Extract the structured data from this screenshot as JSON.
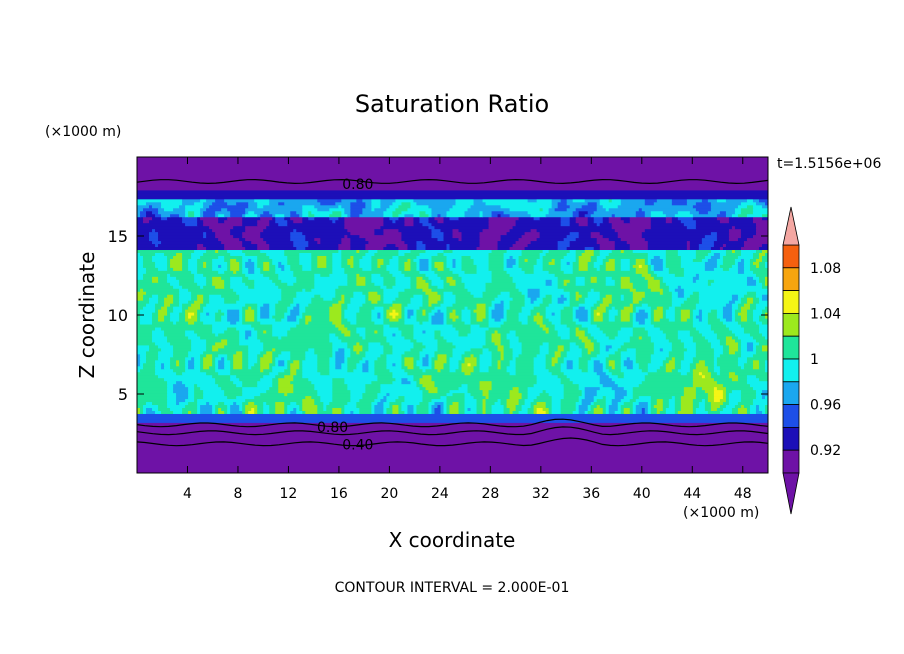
{
  "chart_data": {
    "type": "contour",
    "title": "Saturation Ratio",
    "xlabel": "X coordinate",
    "ylabel": "Z coordinate",
    "x_unit": "(×1000 m)",
    "y_unit": "(×1000 m)",
    "time_label": "t=1.5156e+06",
    "footer": "CONTOUR INTERVAL = 2.000E-01",
    "xlim": [
      0,
      50
    ],
    "ylim": [
      0,
      20
    ],
    "x_ticks": [
      4,
      8,
      12,
      16,
      20,
      24,
      28,
      32,
      36,
      40,
      44,
      48
    ],
    "y_ticks": [
      5,
      10,
      15
    ],
    "contour_labels": [
      {
        "text": "0.80",
        "x": 17.5,
        "y": 18.3
      },
      {
        "text": "0.80",
        "x": 15.5,
        "y": 2.9
      },
      {
        "text": "0.40",
        "x": 17.5,
        "y": 1.8
      }
    ],
    "levels": [
      0.92,
      0.94,
      0.96,
      0.98,
      1.0,
      1.02,
      1.04,
      1.06,
      1.08
    ],
    "colorbar_labels": [
      "0.92",
      "0.96",
      "1",
      "1.04",
      "1.08"
    ],
    "colors": {
      "below": "#6e12a6",
      "l092": "#1c0fb8",
      "l094": "#1d4fe8",
      "l096": "#1aa7ef",
      "l098": "#12f0ee",
      "l100": "#1fe59a",
      "l102": "#9ce91e",
      "l104": "#f5f515",
      "l106": "#f7a50f",
      "l108": "#f5600f",
      "above": "#ef2820",
      "top_arrow": "#f4a7a2"
    }
  }
}
